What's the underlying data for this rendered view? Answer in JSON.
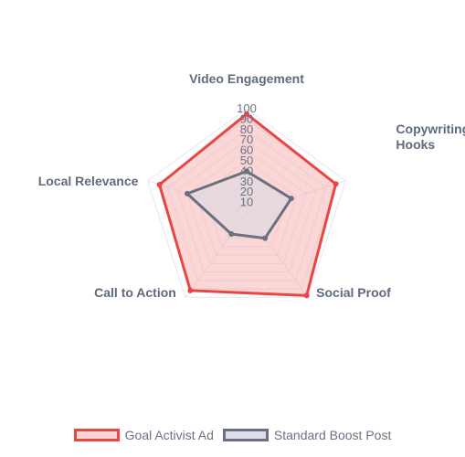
{
  "chart_data": {
    "type": "radar",
    "axes": [
      "Video Engagement",
      "Copywriting Hooks",
      "Social Proof",
      "Call to Action",
      "Local Relevance"
    ],
    "axis_label_lines": [
      [
        "Video Engagement"
      ],
      [
        "Copywriting",
        "Hooks"
      ],
      [
        "Social Proof"
      ],
      [
        "Call to Action"
      ],
      [
        "Local Relevance"
      ]
    ],
    "r_range": [
      0,
      100
    ],
    "ticks": [
      10,
      20,
      30,
      40,
      50,
      60,
      70,
      80,
      90,
      100
    ],
    "grid": true,
    "legend_position": "bottom",
    "series": [
      {
        "name": "Goal Activist Ad",
        "values": [
          95,
          90,
          98,
          92,
          88
        ],
        "stroke": "#e84545",
        "fill": "#f5b5b5"
      },
      {
        "name": "Standard Boost Post",
        "values": [
          40,
          45,
          30,
          25,
          60
        ],
        "stroke": "#6a7080",
        "fill": "#d8dce6"
      }
    ]
  }
}
